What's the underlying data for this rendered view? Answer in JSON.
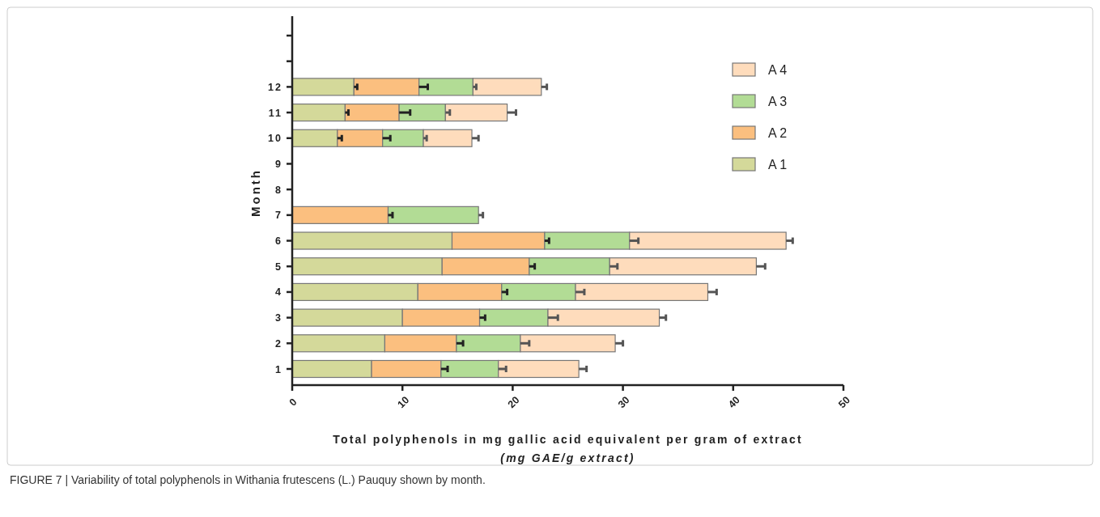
{
  "chart_data": {
    "type": "bar",
    "orientation": "horizontal",
    "stacked": true,
    "xlabel": "Total polyphenols in mg gallic acid equivalent per gram of extract\n(mg GAE/g extract)",
    "ylabel": "Month",
    "categories": [
      null,
      null,
      "12",
      "11",
      "10",
      "9",
      "8",
      "7",
      "6",
      "5",
      "4",
      "3",
      "2",
      "1"
    ],
    "series": [
      {
        "name": "A 1",
        "color": "#d4d99a",
        "values": [
          null,
          null,
          5.6,
          4.8,
          4.1,
          null,
          null,
          null,
          14.5,
          13.6,
          11.4,
          10.0,
          8.4,
          7.2
        ],
        "errors": [
          null,
          null,
          0.3,
          0.3,
          0.4,
          null,
          null,
          null,
          null,
          null,
          null,
          null,
          null,
          null
        ]
      },
      {
        "name": "A 2",
        "color": "#fbbf7f",
        "values": [
          null,
          null,
          5.9,
          4.9,
          4.1,
          null,
          null,
          8.7,
          8.4,
          7.9,
          7.6,
          7.0,
          6.5,
          6.3
        ],
        "errors": [
          null,
          null,
          0.8,
          1.0,
          0.7,
          null,
          null,
          0.4,
          0.4,
          0.5,
          0.5,
          0.5,
          0.6,
          0.6
        ]
      },
      {
        "name": "A 3",
        "color": "#b2dc95",
        "values": [
          null,
          null,
          4.9,
          4.2,
          3.7,
          null,
          null,
          8.2,
          7.7,
          7.3,
          6.7,
          6.2,
          5.8,
          5.2
        ],
        "errors": [
          null,
          null,
          0.3,
          0.4,
          0.3,
          null,
          null,
          0.4,
          0.8,
          0.7,
          0.8,
          0.9,
          0.8,
          0.7
        ]
      },
      {
        "name": "A 4",
        "color": "#fedcbc",
        "values": [
          null,
          null,
          6.2,
          5.6,
          4.4,
          null,
          null,
          null,
          14.2,
          13.3,
          12.0,
          10.1,
          8.6,
          7.3
        ],
        "errors": [
          null,
          null,
          0.5,
          0.8,
          0.6,
          null,
          null,
          null,
          0.6,
          0.8,
          0.8,
          0.6,
          0.7,
          0.7
        ]
      }
    ],
    "xlim": [
      0,
      50
    ],
    "xticks": [
      0,
      10,
      20,
      30,
      40,
      50
    ],
    "legend": "top right",
    "grid": false,
    "annotations": [
      "FIGURE 7 | Variability of total polyphenols in Withania frutescens (L.) Pauquy shown by month."
    ]
  }
}
